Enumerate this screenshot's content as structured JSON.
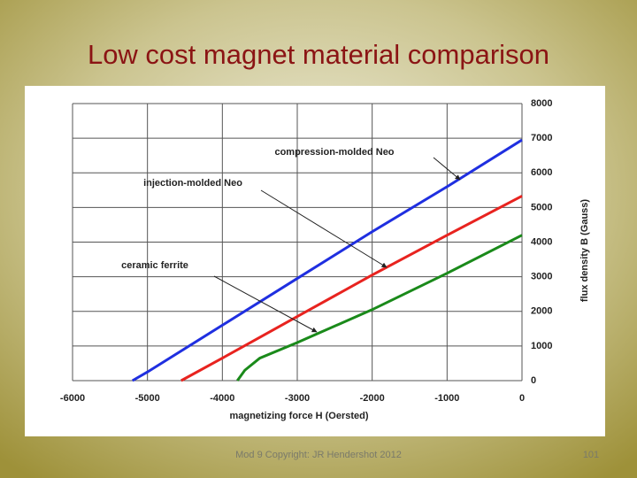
{
  "slide": {
    "title": "Low cost magnet material comparison",
    "footer": "Mod 9 Copyright: JR Hendershot 2012",
    "page_number": "101"
  },
  "chart_data": {
    "type": "line",
    "xlabel": "magnetizing force H (Oersted)",
    "ylabel": "flux density B (Gauss)",
    "xlim": [
      -6000,
      0
    ],
    "xticks": [
      -6000,
      -5000,
      -4000,
      -3000,
      -2000,
      -1000,
      0
    ],
    "ylim": [
      0,
      8000
    ],
    "yticks": [
      0,
      1000,
      2000,
      3000,
      4000,
      5000,
      6000,
      7000,
      8000
    ],
    "grid": true,
    "series": [
      {
        "name": "compression-molded Neo",
        "color": "#1f2fe0",
        "x": [
          -5200,
          -5000,
          -4000,
          -3000,
          -2000,
          -1000,
          0
        ],
        "values": [
          0,
          250,
          1600,
          2950,
          4300,
          5600,
          6950
        ]
      },
      {
        "name": "injection-molded Neo",
        "color": "#e8231f",
        "x": [
          -4550,
          -4000,
          -3000,
          -2000,
          -1000,
          0
        ],
        "values": [
          0,
          650,
          1850,
          3050,
          4200,
          5330
        ]
      },
      {
        "name": "ceramic ferrite",
        "color": "#1a8a1a",
        "x": [
          -3800,
          -3700,
          -3500,
          -3000,
          -2000,
          -1000,
          0
        ],
        "values": [
          0,
          300,
          650,
          1100,
          2050,
          3100,
          4200
        ]
      }
    ]
  }
}
